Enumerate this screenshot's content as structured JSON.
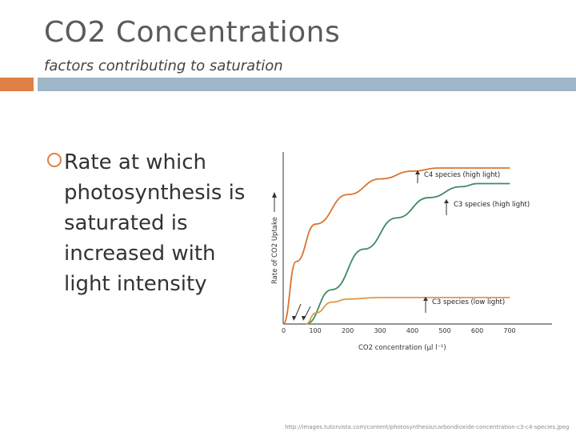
{
  "slide": {
    "title": "CO2 Concentrations",
    "subtitle": "factors contributing to saturation",
    "bullet": "Rate at which photosynthesis is saturated is increased with light intensity",
    "source": "http://images.tutorvista.com/content/photosynthesis/carbondioxide-concentration-c3-c4-species.jpeg"
  },
  "colors": {
    "accent_bar": "#e07f46",
    "main_bar": "#9fb6c9",
    "c4_curve": "#d9742e",
    "c3_high_curve": "#3f8a63",
    "c3_low_curve": "#e09a45"
  },
  "chart_data": {
    "type": "line",
    "xlabel": "CO2 concentration (μl l⁻¹)",
    "ylabel": "Rate of CO2 Uptake",
    "x_ticks": [
      "0",
      "100",
      "200",
      "300",
      "400",
      "500",
      "600",
      "700"
    ],
    "xlim": [
      0,
      830
    ],
    "ylim": [
      0,
      100
    ],
    "series": [
      {
        "name": "C4 species (high light)",
        "x": [
          0,
          40,
          100,
          200,
          300,
          400,
          480,
          700
        ],
        "y": [
          0,
          40,
          64,
          83,
          93,
          98,
          100,
          100
        ]
      },
      {
        "name": "C3 species (high light)",
        "x": [
          70,
          150,
          250,
          350,
          450,
          550,
          600,
          700
        ],
        "y": [
          0,
          22,
          48,
          68,
          81,
          88,
          90,
          90
        ]
      },
      {
        "name": "C3 species (low light)",
        "x": [
          70,
          100,
          150,
          200,
          300,
          400,
          550,
          700
        ],
        "y": [
          0,
          7,
          14,
          16,
          17,
          17,
          17,
          17
        ]
      }
    ]
  }
}
